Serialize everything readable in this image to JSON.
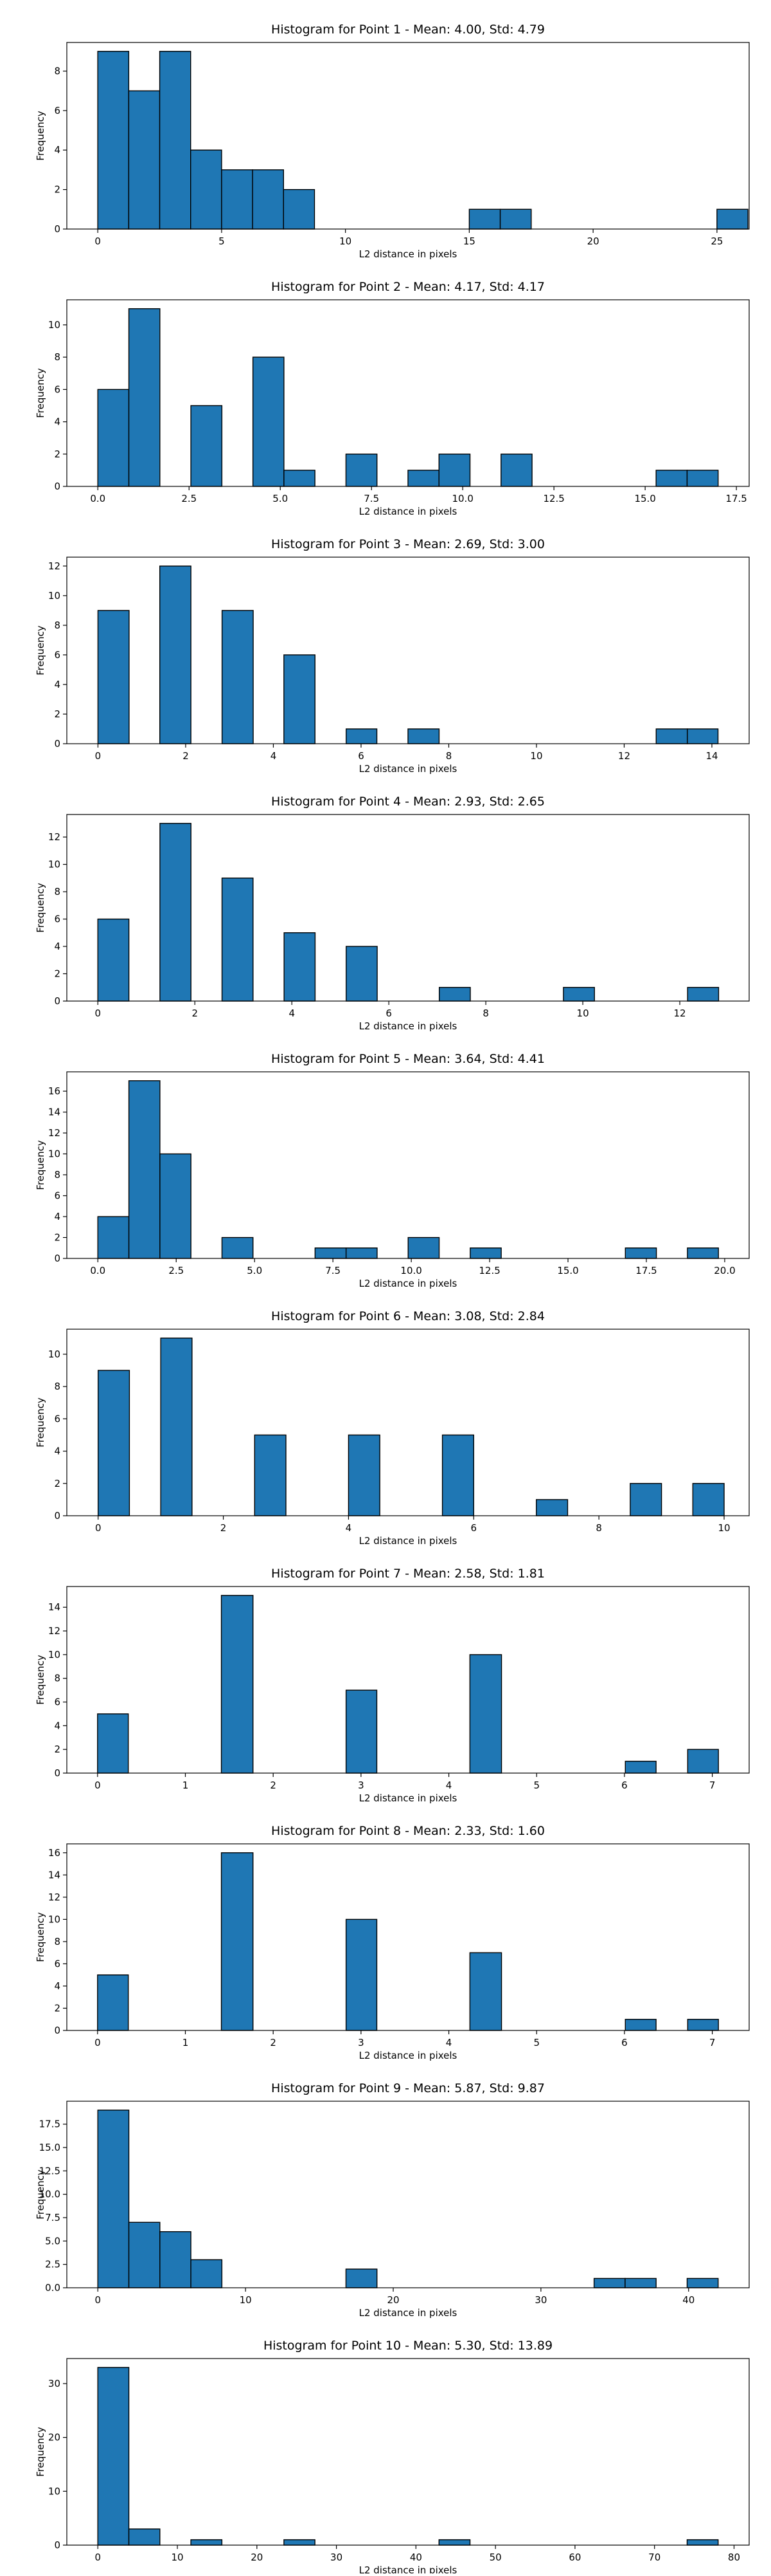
{
  "chart_data": [
    {
      "type": "bar",
      "title": "Histogram for Point 1 - Mean: 4.00, Std: 4.79",
      "xlabel": "L2 distance in pixels",
      "ylabel": "Frequency",
      "xlim": [
        -1.25,
        26.3
      ],
      "ylim": [
        0,
        9.45
      ],
      "xticks": [
        0,
        5,
        10,
        15,
        20,
        25
      ],
      "xtick_labels": [
        "0",
        "5",
        "10",
        "15",
        "20",
        "25"
      ],
      "yticks": [
        0,
        2,
        4,
        6,
        8
      ],
      "ytick_labels": [
        "0",
        "2",
        "4",
        "6",
        "8"
      ],
      "bin_edges": [
        0.0,
        1.25,
        2.5,
        3.75,
        5.0,
        6.25,
        7.5,
        8.75,
        10.0,
        11.25,
        12.5,
        13.75,
        15.0,
        16.25,
        17.5,
        18.75,
        20.0,
        21.25,
        22.5,
        23.75,
        25.0,
        26.25
      ],
      "values": [
        9,
        7,
        9,
        4,
        3,
        3,
        2,
        0,
        0,
        0,
        0,
        0,
        1,
        1,
        0,
        0,
        0,
        0,
        0,
        0,
        1
      ],
      "color": "#1f77b4",
      "edgecolor": "#000000",
      "grid": false
    },
    {
      "type": "bar",
      "title": "Histogram for Point 2 - Mean: 4.17, Std: 4.17",
      "xlabel": "L2 distance in pixels",
      "ylabel": "Frequency",
      "xlim": [
        -0.85,
        17.85
      ],
      "ylim": [
        0,
        11.55
      ],
      "xticks": [
        0,
        2.5,
        5,
        7.5,
        10,
        12.5,
        15,
        17.5
      ],
      "xtick_labels": [
        "0.0",
        "2.5",
        "5.0",
        "7.5",
        "10.0",
        "12.5",
        "15.0",
        "17.5"
      ],
      "yticks": [
        0,
        2,
        4,
        6,
        8,
        10
      ],
      "ytick_labels": [
        "0",
        "2",
        "4",
        "6",
        "8",
        "10"
      ],
      "bin_edges": [
        0.0,
        0.85,
        1.7,
        2.55,
        3.4,
        4.25,
        5.1,
        5.95,
        6.8,
        7.65,
        8.5,
        9.35,
        10.2,
        11.05,
        11.9,
        12.75,
        13.6,
        14.45,
        15.3,
        16.15,
        17.0
      ],
      "values": [
        6,
        11,
        0,
        5,
        0,
        8,
        1,
        0,
        2,
        0,
        1,
        2,
        0,
        2,
        0,
        0,
        0,
        0,
        1,
        1
      ],
      "color": "#1f77b4",
      "edgecolor": "#000000",
      "grid": false
    },
    {
      "type": "bar",
      "title": "Histogram for Point 3 - Mean: 2.69, Std: 3.00",
      "xlabel": "L2 distance in pixels",
      "ylabel": "Frequency",
      "xlim": [
        -0.71,
        14.85
      ],
      "ylim": [
        0,
        12.6
      ],
      "xticks": [
        0,
        2,
        4,
        6,
        8,
        10,
        12,
        14
      ],
      "xtick_labels": [
        "0",
        "2",
        "4",
        "6",
        "8",
        "10",
        "12",
        "14"
      ],
      "yticks": [
        0,
        2,
        4,
        6,
        8,
        10,
        12
      ],
      "ytick_labels": [
        "0",
        "2",
        "4",
        "6",
        "8",
        "10",
        "12"
      ],
      "bin_edges": [
        0.0,
        0.71,
        1.41,
        2.12,
        2.83,
        3.54,
        4.24,
        4.95,
        5.66,
        6.36,
        7.07,
        7.78,
        8.49,
        9.19,
        9.9,
        10.61,
        11.31,
        12.02,
        12.73,
        13.44,
        14.14
      ],
      "values": [
        9,
        0,
        12,
        0,
        9,
        0,
        6,
        0,
        1,
        0,
        1,
        0,
        0,
        0,
        0,
        0,
        0,
        0,
        1,
        1
      ],
      "color": "#1f77b4",
      "edgecolor": "#000000",
      "grid": false
    },
    {
      "type": "bar",
      "title": "Histogram for Point 4 - Mean: 2.93, Std: 2.65",
      "xlabel": "L2 distance in pixels",
      "ylabel": "Frequency",
      "xlim": [
        -0.64,
        13.43
      ],
      "ylim": [
        0,
        13.65
      ],
      "xticks": [
        0,
        2,
        4,
        6,
        8,
        10,
        12
      ],
      "xtick_labels": [
        "0",
        "2",
        "4",
        "6",
        "8",
        "10",
        "12"
      ],
      "yticks": [
        0,
        2,
        4,
        6,
        8,
        10,
        12
      ],
      "ytick_labels": [
        "0",
        "2",
        "4",
        "6",
        "8",
        "10",
        "12"
      ],
      "bin_edges": [
        0.0,
        0.64,
        1.28,
        1.92,
        2.56,
        3.2,
        3.84,
        4.48,
        5.12,
        5.76,
        6.4,
        7.04,
        7.68,
        8.32,
        8.96,
        9.6,
        10.24,
        10.88,
        11.52,
        12.16,
        12.8
      ],
      "values": [
        6,
        0,
        13,
        0,
        9,
        0,
        5,
        0,
        4,
        0,
        0,
        1,
        0,
        0,
        0,
        1,
        0,
        0,
        0,
        1
      ],
      "color": "#1f77b4",
      "edgecolor": "#000000",
      "grid": false
    },
    {
      "type": "bar",
      "title": "Histogram for Point 5 - Mean: 3.64, Std: 4.41",
      "xlabel": "L2 distance in pixels",
      "ylabel": "Frequency",
      "xlim": [
        -0.99,
        20.78
      ],
      "ylim": [
        0,
        17.85
      ],
      "xticks": [
        0,
        2.5,
        5,
        7.5,
        10,
        12.5,
        15,
        17.5,
        20
      ],
      "xtick_labels": [
        "0.0",
        "2.5",
        "5.0",
        "7.5",
        "10.0",
        "12.5",
        "15.0",
        "17.5",
        "20.0"
      ],
      "yticks": [
        0,
        2,
        4,
        6,
        8,
        10,
        12,
        14,
        16
      ],
      "ytick_labels": [
        "0",
        "2",
        "4",
        "6",
        "8",
        "10",
        "12",
        "14",
        "16"
      ],
      "bin_edges": [
        0.0,
        0.99,
        1.98,
        2.97,
        3.96,
        4.95,
        5.94,
        6.93,
        7.92,
        8.91,
        9.9,
        10.89,
        11.88,
        12.87,
        13.86,
        14.85,
        15.84,
        16.83,
        17.82,
        18.81,
        19.8
      ],
      "values": [
        4,
        17,
        10,
        0,
        2,
        0,
        0,
        1,
        1,
        0,
        2,
        0,
        1,
        0,
        0,
        0,
        0,
        1,
        0,
        1
      ],
      "color": "#1f77b4",
      "edgecolor": "#000000",
      "grid": false
    },
    {
      "type": "bar",
      "title": "Histogram for Point 6 - Mean: 3.08, Std: 2.84",
      "xlabel": "L2 distance in pixels",
      "ylabel": "Frequency",
      "xlim": [
        -0.5,
        10.4
      ],
      "ylim": [
        0,
        11.55
      ],
      "xticks": [
        0,
        2,
        4,
        6,
        8,
        10
      ],
      "xtick_labels": [
        "0",
        "2",
        "4",
        "6",
        "8",
        "10"
      ],
      "yticks": [
        0,
        2,
        4,
        6,
        8,
        10
      ],
      "ytick_labels": [
        "0",
        "2",
        "4",
        "6",
        "8",
        "10"
      ],
      "bin_edges": [
        0.0,
        0.5,
        1.0,
        1.5,
        2.0,
        2.5,
        3.0,
        3.5,
        4.0,
        4.5,
        5.0,
        5.5,
        6.0,
        6.5,
        7.0,
        7.5,
        8.0,
        8.5,
        9.0,
        9.5,
        10.0
      ],
      "values": [
        9,
        0,
        11,
        0,
        0,
        5,
        0,
        0,
        5,
        0,
        0,
        5,
        0,
        0,
        1,
        0,
        0,
        2,
        0,
        2
      ],
      "color": "#1f77b4",
      "edgecolor": "#000000",
      "grid": false
    },
    {
      "type": "bar",
      "title": "Histogram for Point 7 - Mean: 2.58, Std: 1.81",
      "xlabel": "L2 distance in pixels",
      "ylabel": "Frequency",
      "xlim": [
        -0.35,
        7.42
      ],
      "ylim": [
        0,
        15.75
      ],
      "xticks": [
        0,
        1,
        2,
        3,
        4,
        5,
        6,
        7
      ],
      "xtick_labels": [
        "0",
        "1",
        "2",
        "3",
        "4",
        "5",
        "6",
        "7"
      ],
      "yticks": [
        0,
        2,
        4,
        6,
        8,
        10,
        12,
        14
      ],
      "ytick_labels": [
        "0",
        "2",
        "4",
        "6",
        "8",
        "10",
        "12",
        "14"
      ],
      "bin_edges": [
        0.0,
        0.35,
        0.71,
        1.06,
        1.41,
        1.77,
        2.12,
        2.47,
        2.83,
        3.18,
        3.54,
        3.89,
        4.24,
        4.6,
        4.95,
        5.3,
        5.66,
        6.01,
        6.36,
        6.72,
        7.07
      ],
      "values": [
        5,
        0,
        0,
        0,
        15,
        0,
        0,
        0,
        7,
        0,
        0,
        0,
        10,
        0,
        0,
        0,
        0,
        1,
        0,
        2
      ],
      "color": "#1f77b4",
      "edgecolor": "#000000",
      "grid": false
    },
    {
      "type": "bar",
      "title": "Histogram for Point 8 - Mean: 2.33, Std: 1.60",
      "xlabel": "L2 distance in pixels",
      "ylabel": "Frequency",
      "xlim": [
        -0.35,
        7.42
      ],
      "ylim": [
        0,
        16.8
      ],
      "xticks": [
        0,
        1,
        2,
        3,
        4,
        5,
        6,
        7
      ],
      "xtick_labels": [
        "0",
        "1",
        "2",
        "3",
        "4",
        "5",
        "6",
        "7"
      ],
      "yticks": [
        0,
        2,
        4,
        6,
        8,
        10,
        12,
        14,
        16
      ],
      "ytick_labels": [
        "0",
        "2",
        "4",
        "6",
        "8",
        "10",
        "12",
        "14",
        "16"
      ],
      "bin_edges": [
        0.0,
        0.35,
        0.71,
        1.06,
        1.41,
        1.77,
        2.12,
        2.47,
        2.83,
        3.18,
        3.54,
        3.89,
        4.24,
        4.6,
        4.95,
        5.3,
        5.66,
        6.01,
        6.36,
        6.72,
        7.07
      ],
      "values": [
        5,
        0,
        0,
        0,
        16,
        0,
        0,
        0,
        10,
        0,
        0,
        0,
        7,
        0,
        0,
        0,
        0,
        1,
        0,
        1
      ],
      "color": "#1f77b4",
      "edgecolor": "#000000",
      "grid": false
    },
    {
      "type": "bar",
      "title": "Histogram for Point 9 - Mean: 5.87, Std: 9.87",
      "xlabel": "L2 distance in pixels",
      "ylabel": "Frequency",
      "xlim": [
        -2.1,
        44.1
      ],
      "ylim": [
        0,
        19.95
      ],
      "xticks": [
        0,
        10,
        20,
        30,
        40
      ],
      "xtick_labels": [
        "0",
        "10",
        "20",
        "30",
        "40"
      ],
      "yticks": [
        0,
        2.5,
        5,
        7.5,
        10,
        12.5,
        15,
        17.5
      ],
      "ytick_labels": [
        "0.0",
        "2.5",
        "5.0",
        "7.5",
        "10.0",
        "12.5",
        "15.0",
        "17.5"
      ],
      "bin_edges": [
        0.0,
        2.1,
        4.2,
        6.3,
        8.4,
        10.5,
        12.6,
        14.7,
        16.8,
        18.9,
        21.0,
        23.1,
        25.2,
        27.3,
        29.4,
        31.5,
        33.6,
        35.7,
        37.8,
        39.9,
        42.0
      ],
      "values": [
        19,
        7,
        6,
        3,
        0,
        0,
        0,
        0,
        2,
        0,
        0,
        0,
        0,
        0,
        0,
        0,
        1,
        1,
        0,
        1
      ],
      "color": "#1f77b4",
      "edgecolor": "#000000",
      "grid": false
    },
    {
      "type": "bar",
      "title": "Histogram for Point 10 - Mean: 5.30, Std: 13.89",
      "xlabel": "L2 distance in pixels",
      "ylabel": "Frequency",
      "xlim": [
        -3.9,
        81.9
      ],
      "ylim": [
        0,
        34.65
      ],
      "xticks": [
        0,
        10,
        20,
        30,
        40,
        50,
        60,
        70,
        80
      ],
      "xtick_labels": [
        "0",
        "10",
        "20",
        "30",
        "40",
        "50",
        "60",
        "70",
        "80"
      ],
      "yticks": [
        0,
        10,
        20,
        30
      ],
      "ytick_labels": [
        "0",
        "10",
        "20",
        "30"
      ],
      "bin_edges": [
        0.0,
        3.9,
        7.8,
        11.7,
        15.6,
        19.5,
        23.4,
        27.3,
        31.2,
        35.1,
        39.0,
        42.9,
        46.8,
        50.7,
        54.6,
        58.5,
        62.4,
        66.3,
        70.2,
        74.1,
        78.0
      ],
      "values": [
        33,
        3,
        0,
        1,
        0,
        0,
        1,
        0,
        0,
        0,
        0,
        1,
        0,
        0,
        0,
        0,
        0,
        0,
        0,
        1
      ],
      "color": "#1f77b4",
      "edgecolor": "#000000",
      "grid": false
    }
  ]
}
